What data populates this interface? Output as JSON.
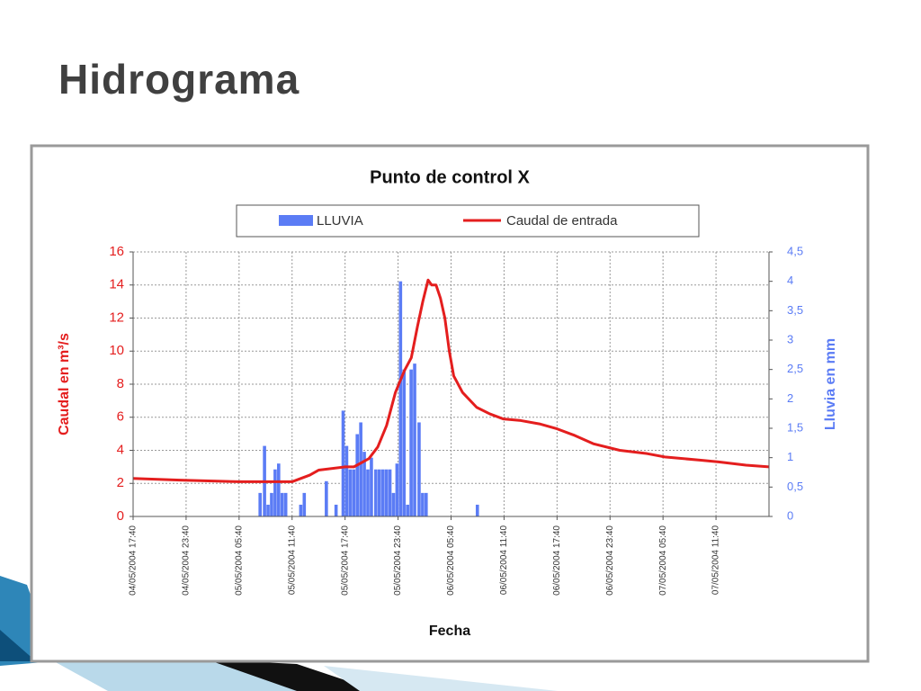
{
  "title": "Hidrograma",
  "chart_data": {
    "type": "hydrograph",
    "title": "Punto de control X",
    "x_label": "Fecha",
    "y_label": "Caudal en m³/s",
    "y2_label": "Lluvia en mm",
    "xlim": [
      0,
      72
    ],
    "xticks": [
      {
        "value": 0,
        "label": "04/05/2004 17:40"
      },
      {
        "value": 6,
        "label": "04/05/2004 23:40"
      },
      {
        "value": 12,
        "label": "05/05/2004 05:40"
      },
      {
        "value": 18,
        "label": "05/05/2004 11:40"
      },
      {
        "value": 24,
        "label": "05/05/2004 17:40"
      },
      {
        "value": 30,
        "label": "05/05/2004 23:40"
      },
      {
        "value": 36,
        "label": "06/05/2004 05:40"
      },
      {
        "value": 42,
        "label": "06/05/2004 11:40"
      },
      {
        "value": 48,
        "label": "06/05/2004 17:40"
      },
      {
        "value": 54,
        "label": "06/05/2004 23:40"
      },
      {
        "value": 60,
        "label": "07/05/2004 05:40"
      },
      {
        "value": 66,
        "label": "07/05/2004 11:40"
      }
    ],
    "ylim": [
      0,
      16
    ],
    "yticks": [
      0,
      2,
      4,
      6,
      8,
      10,
      12,
      14,
      16
    ],
    "y2lim": [
      0,
      4.5
    ],
    "y2ticks": [
      0,
      {
        "value": 0.5,
        "label": "0,5"
      },
      1,
      {
        "value": 1.5,
        "label": "1,5"
      },
      2,
      {
        "value": 2.5,
        "label": "2,5"
      },
      3,
      {
        "value": 3.5,
        "label": "3,5"
      },
      4,
      {
        "value": 4.5,
        "label": "4,5"
      }
    ],
    "grid": true,
    "series": [
      {
        "name": "LLUVIA",
        "kind": "bar",
        "axis": "y2",
        "color": "#5b7cf5",
        "x": [
          14.4,
          14.9,
          15.3,
          15.7,
          16.1,
          16.5,
          16.9,
          17.3,
          19.0,
          19.4,
          21.9,
          23.0,
          23.8,
          24.2,
          24.6,
          25.0,
          25.4,
          25.8,
          26.2,
          26.6,
          27.0,
          27.5,
          27.9,
          28.3,
          28.7,
          29.1,
          29.5,
          29.9,
          30.3,
          30.7,
          31.1,
          31.5,
          31.9,
          32.4,
          32.8,
          33.2,
          39.0
        ],
        "values": [
          0.4,
          1.2,
          0.2,
          0.4,
          0.8,
          0.9,
          0.4,
          0.4,
          0.2,
          0.4,
          0.6,
          0.2,
          1.8,
          1.2,
          0.8,
          0.8,
          1.4,
          1.6,
          1.1,
          0.8,
          1.0,
          0.8,
          0.8,
          0.8,
          0.8,
          0.8,
          0.4,
          0.9,
          4.0,
          2.5,
          0.2,
          2.5,
          2.6,
          1.6,
          0.4,
          0.4,
          0.2
        ]
      },
      {
        "name": "Caudal de entrada",
        "kind": "line",
        "color": "#e41e1e",
        "x": [
          0,
          5.3,
          12,
          18,
          18.5,
          20,
          21,
          24,
          25,
          26.7,
          27.7,
          28.7,
          29.7,
          30.7,
          31.5,
          32.2,
          32.8,
          33.4,
          33.8,
          34.3,
          34.8,
          35.3,
          35.8,
          36.3,
          37.3,
          38.9,
          40.4,
          41.9,
          43.9,
          46,
          48,
          50,
          52.1,
          55.1,
          58.2,
          60.2,
          64.3,
          66.3,
          69.4,
          72
        ],
        "values": [
          2.3,
          2.2,
          2.1,
          2.1,
          2.2,
          2.5,
          2.8,
          3.0,
          3.0,
          3.5,
          4.2,
          5.5,
          7.5,
          8.8,
          9.6,
          11.5,
          13.0,
          14.3,
          14.0,
          14.0,
          13.2,
          12.0,
          10.0,
          8.5,
          7.5,
          6.6,
          6.2,
          5.9,
          5.8,
          5.6,
          5.3,
          4.9,
          4.4,
          4.0,
          3.8,
          3.6,
          3.4,
          3.3,
          3.1,
          3.0
        ]
      }
    ]
  }
}
